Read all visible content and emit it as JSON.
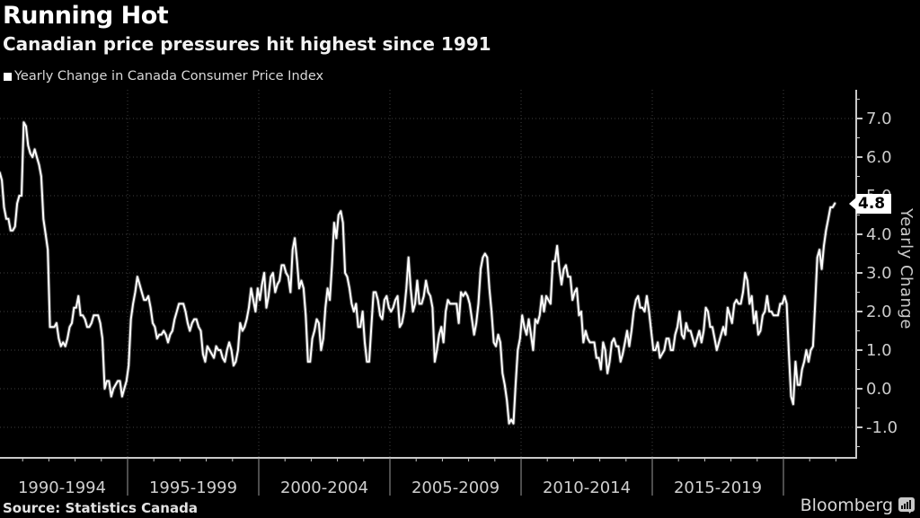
{
  "header": {
    "title": "Running Hot",
    "subtitle": "Canadian price pressures hit highest since 1991"
  },
  "legend": {
    "label": "Yearly Change in Canada Consumer Price Index"
  },
  "y_axis": {
    "label": "Yearly Change",
    "tick_labels": [
      "7.0",
      "6.0",
      "5.0",
      "4.0",
      "3.0",
      "2.0",
      "1.0",
      "0.0",
      "-1.0"
    ]
  },
  "x_axis": {
    "labels": [
      "1990-1994",
      "1995-1999",
      "2000-2004",
      "2005-2009",
      "2010-2014",
      "2015-2019"
    ]
  },
  "callout": {
    "value": "4.8"
  },
  "footer": {
    "source": "Source: Statistics Canada",
    "brand": "Bloomberg"
  },
  "colors": {
    "background": "#000000",
    "line": "#ffffff",
    "grid": "#3f3f3f",
    "axis": "#c9c9c9",
    "tick_text": "#cccccc",
    "callout_bg": "#ffffff",
    "callout_text": "#000000"
  },
  "chart_data": {
    "type": "line",
    "title": "Yearly Change in Canada Consumer Price Index",
    "ylabel": "Yearly Change",
    "ylim": [
      -1.7,
      7.7
    ],
    "x_start_year": 1990,
    "frequency": "monthly",
    "y_gridline_values": [
      -1,
      0,
      1,
      2,
      3,
      4,
      5,
      6,
      7
    ],
    "x_gridline_years": [
      1995,
      2000,
      2005,
      2010,
      2015,
      2020
    ],
    "last_value_label": "4.8",
    "values": [
      5.5,
      5.6,
      5.4,
      4.7,
      4.4,
      4.4,
      4.1,
      4.1,
      4.2,
      4.8,
      5.0,
      5.0,
      6.9,
      6.8,
      6.3,
      6.1,
      6.0,
      6.2,
      6.0,
      5.8,
      5.5,
      4.4,
      4.0,
      3.6,
      1.6,
      1.6,
      1.6,
      1.7,
      1.3,
      1.1,
      1.2,
      1.1,
      1.3,
      1.6,
      1.7,
      2.1,
      2.1,
      2.4,
      1.9,
      1.9,
      1.8,
      1.6,
      1.6,
      1.7,
      1.9,
      1.9,
      1.9,
      1.7,
      1.3,
      0.0,
      0.2,
      0.2,
      -0.2,
      0.0,
      0.1,
      0.2,
      0.2,
      -0.2,
      0.0,
      0.2,
      0.6,
      1.8,
      2.2,
      2.5,
      2.9,
      2.7,
      2.5,
      2.3,
      2.3,
      2.4,
      2.1,
      1.7,
      1.6,
      1.3,
      1.4,
      1.4,
      1.5,
      1.4,
      1.2,
      1.4,
      1.5,
      1.8,
      2.0,
      2.2,
      2.2,
      2.2,
      2.0,
      1.7,
      1.5,
      1.7,
      1.8,
      1.8,
      1.6,
      1.5,
      0.9,
      0.7,
      1.1,
      1.0,
      0.9,
      0.8,
      1.1,
      1.0,
      1.0,
      0.8,
      0.7,
      1.0,
      1.2,
      1.0,
      0.6,
      0.7,
      1.0,
      1.7,
      1.5,
      1.6,
      1.8,
      2.1,
      2.6,
      2.3,
      2.0,
      2.6,
      2.3,
      2.7,
      3.0,
      2.1,
      2.4,
      2.9,
      3.0,
      2.5,
      2.7,
      2.8,
      3.2,
      3.2,
      3.0,
      2.9,
      2.5,
      3.6,
      3.9,
      3.3,
      2.6,
      2.8,
      2.6,
      1.9,
      0.7,
      0.7,
      1.3,
      1.5,
      1.8,
      1.7,
      1.0,
      1.3,
      2.1,
      2.6,
      2.3,
      3.2,
      4.3,
      3.9,
      4.5,
      4.6,
      4.3,
      3.0,
      2.9,
      2.6,
      2.2,
      2.0,
      2.2,
      1.6,
      1.6,
      2.0,
      1.2,
      0.7,
      0.7,
      1.6,
      2.5,
      2.5,
      2.3,
      1.9,
      1.8,
      2.3,
      2.4,
      2.1,
      2.0,
      2.1,
      2.3,
      2.4,
      1.6,
      1.7,
      2.0,
      2.6,
      3.4,
      2.6,
      2.0,
      2.2,
      2.8,
      2.2,
      2.2,
      2.4,
      2.8,
      2.5,
      2.4,
      2.1,
      0.7,
      1.0,
      1.4,
      1.6,
      1.2,
      2.0,
      2.3,
      2.2,
      2.2,
      2.2,
      2.2,
      1.7,
      2.5,
      2.4,
      2.5,
      2.4,
      2.2,
      1.8,
      1.4,
      1.7,
      2.2,
      3.1,
      3.4,
      3.5,
      3.4,
      2.6,
      2.0,
      1.2,
      1.1,
      1.4,
      1.2,
      0.4,
      0.1,
      -0.3,
      -0.9,
      -0.8,
      -0.9,
      0.1,
      1.0,
      1.3,
      1.9,
      1.6,
      1.4,
      1.8,
      1.4,
      1.0,
      1.8,
      1.7,
      1.9,
      2.4,
      2.0,
      2.4,
      2.3,
      2.2,
      3.3,
      3.3,
      3.7,
      3.1,
      2.7,
      3.1,
      3.2,
      2.9,
      2.9,
      2.3,
      2.5,
      2.6,
      1.9,
      2.0,
      1.2,
      1.5,
      1.3,
      1.2,
      1.2,
      1.2,
      0.8,
      0.8,
      0.5,
      1.2,
      1.0,
      0.4,
      0.7,
      1.2,
      1.3,
      1.1,
      1.1,
      0.7,
      0.9,
      1.2,
      1.5,
      1.1,
      1.5,
      2.0,
      2.3,
      2.4,
      2.1,
      2.1,
      2.0,
      2.4,
      2.0,
      1.5,
      1.0,
      1.0,
      1.2,
      0.8,
      0.9,
      1.0,
      1.3,
      1.3,
      1.0,
      1.0,
      1.4,
      1.6,
      2.0,
      1.4,
      1.3,
      1.7,
      1.5,
      1.5,
      1.3,
      1.1,
      1.3,
      1.5,
      1.2,
      1.5,
      2.1,
      2.0,
      1.6,
      1.6,
      1.3,
      1.0,
      1.2,
      1.4,
      1.6,
      1.4,
      2.1,
      1.9,
      1.7,
      2.2,
      2.3,
      2.2,
      2.2,
      2.5,
      3.0,
      2.8,
      2.2,
      2.4,
      1.7,
      2.0,
      1.4,
      1.5,
      1.9,
      2.0,
      2.4,
      2.0,
      2.0,
      1.9,
      1.9,
      1.9,
      2.2,
      2.2,
      2.4,
      2.2,
      0.9,
      -0.2,
      -0.4,
      0.7,
      0.1,
      0.1,
      0.5,
      0.7,
      1.0,
      0.7,
      1.0,
      1.1,
      2.2,
      3.4,
      3.6,
      3.1,
      3.7,
      4.1,
      4.4,
      4.7,
      4.7,
      4.8
    ]
  }
}
